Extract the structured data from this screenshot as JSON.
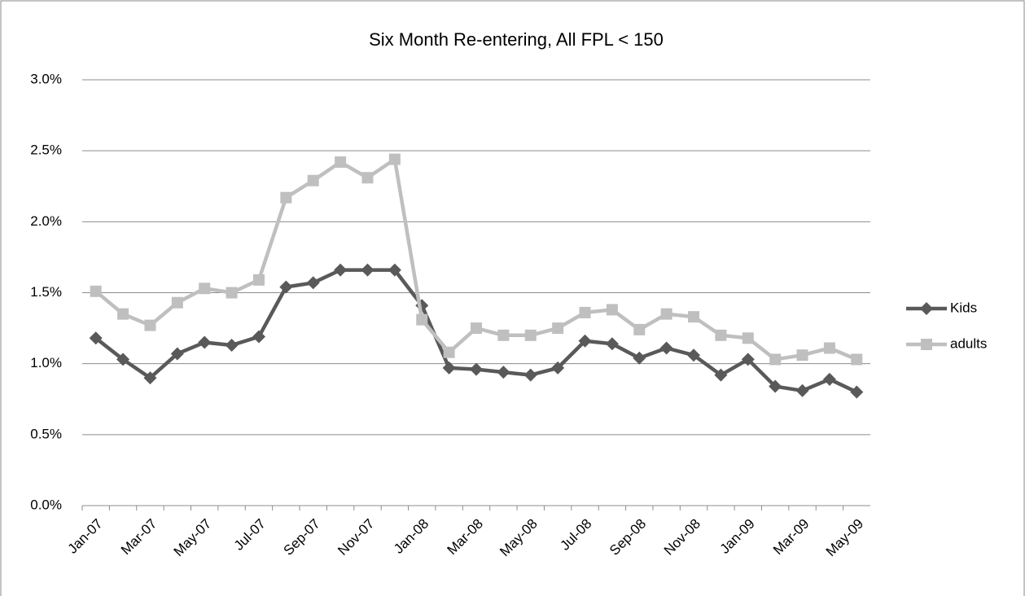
{
  "chart_data": {
    "type": "line",
    "title": "Six Month Re-entering, All FPL < 150",
    "categories": [
      "Jan-07",
      null,
      "Mar-07",
      null,
      "May-07",
      null,
      "Jul-07",
      null,
      "Sep-07",
      null,
      "Nov-07",
      null,
      "Jan-08",
      null,
      "Mar-08",
      null,
      "May-08",
      null,
      "Jul-08",
      null,
      "Sep-08",
      null,
      "Nov-08",
      null,
      "Jan-09",
      null,
      "Mar-09",
      null,
      "May-09"
    ],
    "series": [
      {
        "name": "Kids",
        "color": "#595959",
        "marker": "diamond",
        "values": [
          1.18,
          1.03,
          0.9,
          1.07,
          1.15,
          1.13,
          1.19,
          1.54,
          1.57,
          1.66,
          1.66,
          1.66,
          1.41,
          0.97,
          0.96,
          0.94,
          0.92,
          0.97,
          1.16,
          1.14,
          1.04,
          1.11,
          1.06,
          0.92,
          1.03,
          0.84,
          0.81,
          0.89,
          0.8
        ]
      },
      {
        "name": "adults",
        "color": "#bfbfbf",
        "marker": "square",
        "values": [
          1.51,
          1.35,
          1.27,
          1.43,
          1.53,
          1.5,
          1.59,
          2.17,
          2.29,
          2.42,
          2.31,
          2.44,
          1.31,
          1.08,
          1.25,
          1.2,
          1.2,
          1.25,
          1.36,
          1.38,
          1.24,
          1.35,
          1.33,
          1.2,
          1.18,
          1.03,
          1.06,
          1.11,
          1.03
        ]
      }
    ],
    "ylim": [
      0,
      3
    ],
    "yticks": [
      {
        "value": 0,
        "label": "0.0%"
      },
      {
        "value": 0.5,
        "label": "0.5%"
      },
      {
        "value": 1,
        "label": "1.0%"
      },
      {
        "value": 1.5,
        "label": "1.5%"
      },
      {
        "value": 2,
        "label": "2.0%"
      },
      {
        "value": 2.5,
        "label": "2.5%"
      },
      {
        "value": 3,
        "label": "3.0%"
      }
    ],
    "grid": true,
    "legend": "right"
  }
}
